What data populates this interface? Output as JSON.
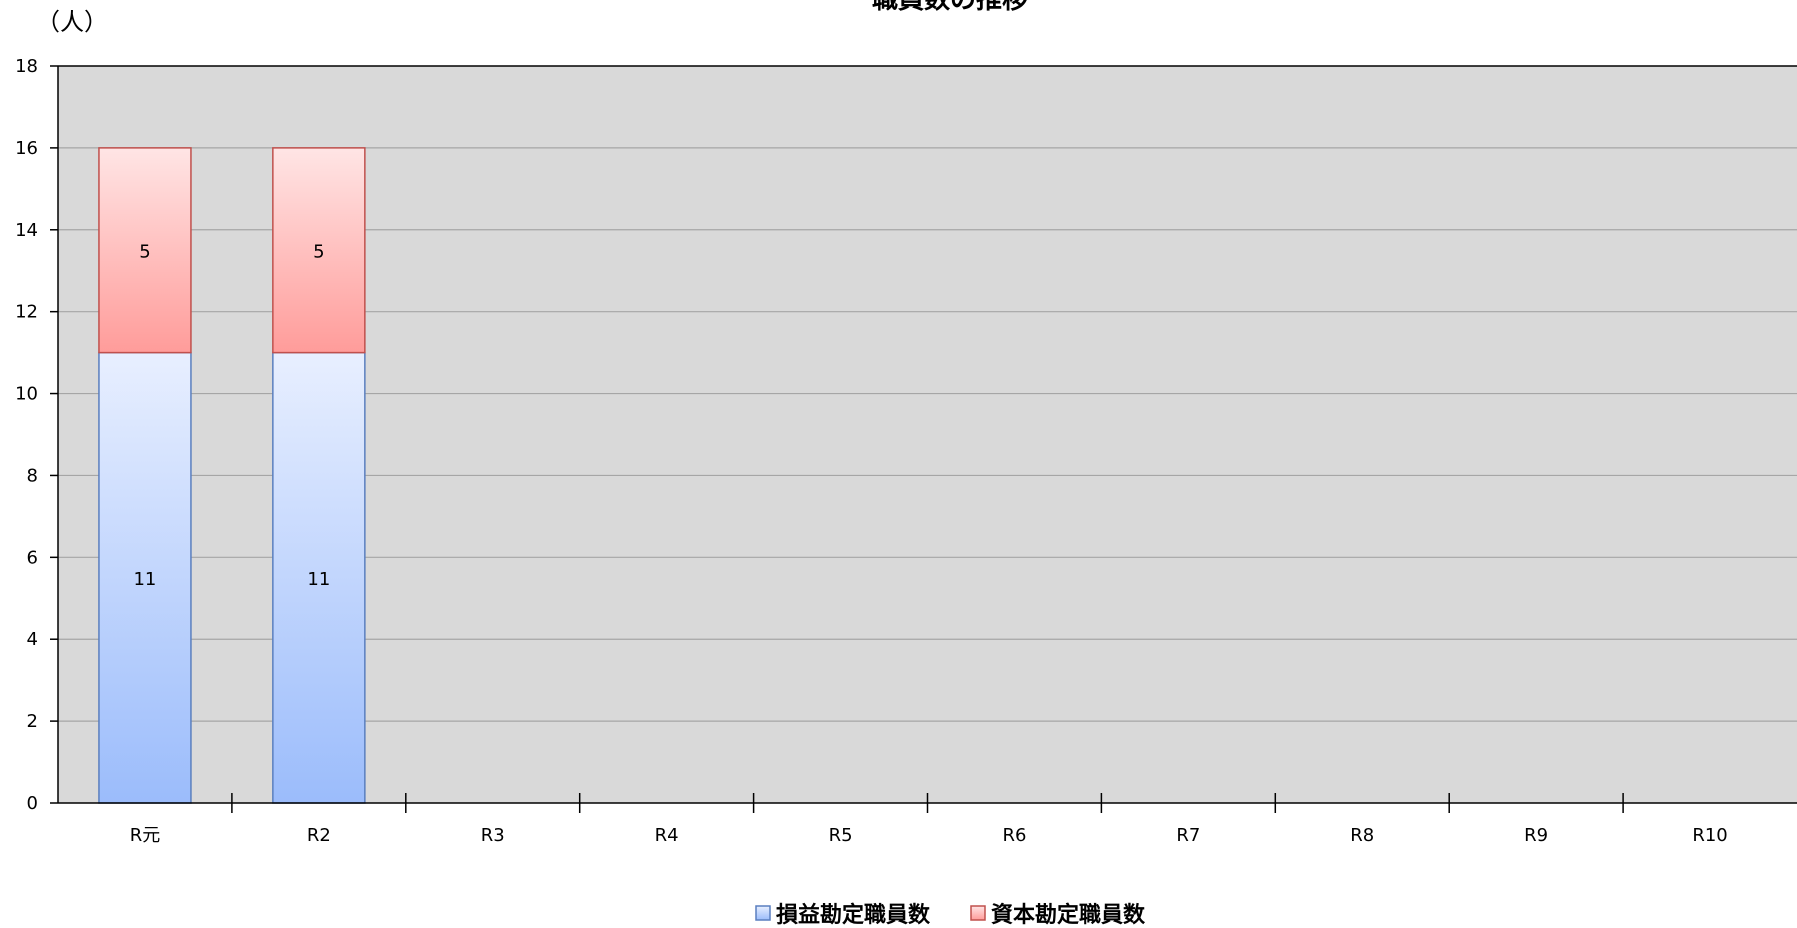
{
  "chart_data": {
    "type": "bar",
    "stacked": true,
    "title": "職員数の推移",
    "unit_label": "（人）",
    "categories": [
      "R元",
      "R2",
      "R3",
      "R4",
      "R5",
      "R6",
      "R7",
      "R8",
      "R9",
      "R10"
    ],
    "series": [
      {
        "name": "損益勘定職員数",
        "values": [
          11,
          11,
          null,
          null,
          null,
          null,
          null,
          null,
          null,
          null
        ],
        "color_top": "#e8efff",
        "color_bottom": "#9bbcfb",
        "stroke": "#5a7fbf"
      },
      {
        "name": "資本勘定職員数",
        "values": [
          5,
          5,
          null,
          null,
          null,
          null,
          null,
          null,
          null,
          null
        ],
        "color_top": "#ffe5e5",
        "color_bottom": "#ff9c9a",
        "stroke": "#c0504d"
      }
    ],
    "ylim": [
      0,
      18
    ],
    "yticks": [
      0,
      2,
      4,
      6,
      8,
      10,
      12,
      14,
      16,
      18
    ],
    "grid": true,
    "plot_background": "#d9d9d9",
    "legend_position": "bottom"
  }
}
